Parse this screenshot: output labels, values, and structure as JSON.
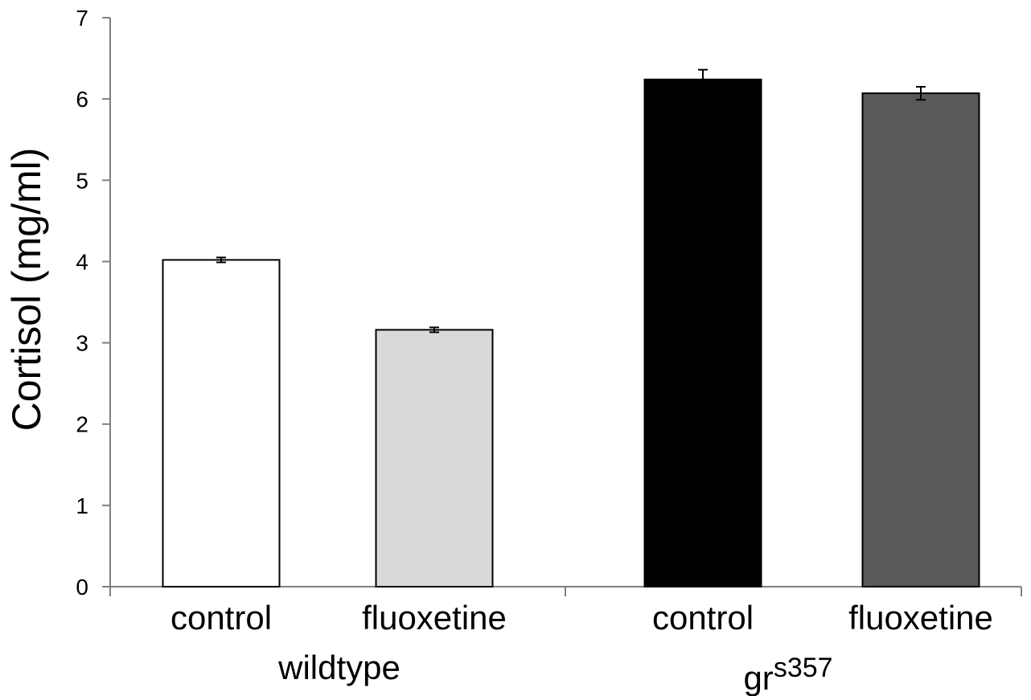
{
  "chart_data": {
    "type": "bar",
    "title": "",
    "xlabel": "",
    "ylabel": "Cortisol (mg/ml)",
    "ylim": [
      0,
      7
    ],
    "yticks": [
      "0",
      "1",
      "2",
      "3",
      "4",
      "5",
      "6",
      "7"
    ],
    "grid": false,
    "legend": "none",
    "groups": [
      {
        "label": "wildtype",
        "label_superscript": ""
      },
      {
        "label": "gr",
        "label_superscript": "s357"
      }
    ],
    "bars": [
      {
        "group": 0,
        "category": "control",
        "value": 4.02,
        "error": 0.03,
        "fill": "#ffffff"
      },
      {
        "group": 0,
        "category": "fluoxetine",
        "value": 3.16,
        "error": 0.03,
        "fill": "#d9d9d9"
      },
      {
        "group": 1,
        "category": "control",
        "value": 6.24,
        "error": 0.12,
        "fill": "#000000"
      },
      {
        "group": 1,
        "category": "fluoxetine",
        "value": 6.07,
        "error": 0.08,
        "fill": "#595959"
      }
    ]
  }
}
